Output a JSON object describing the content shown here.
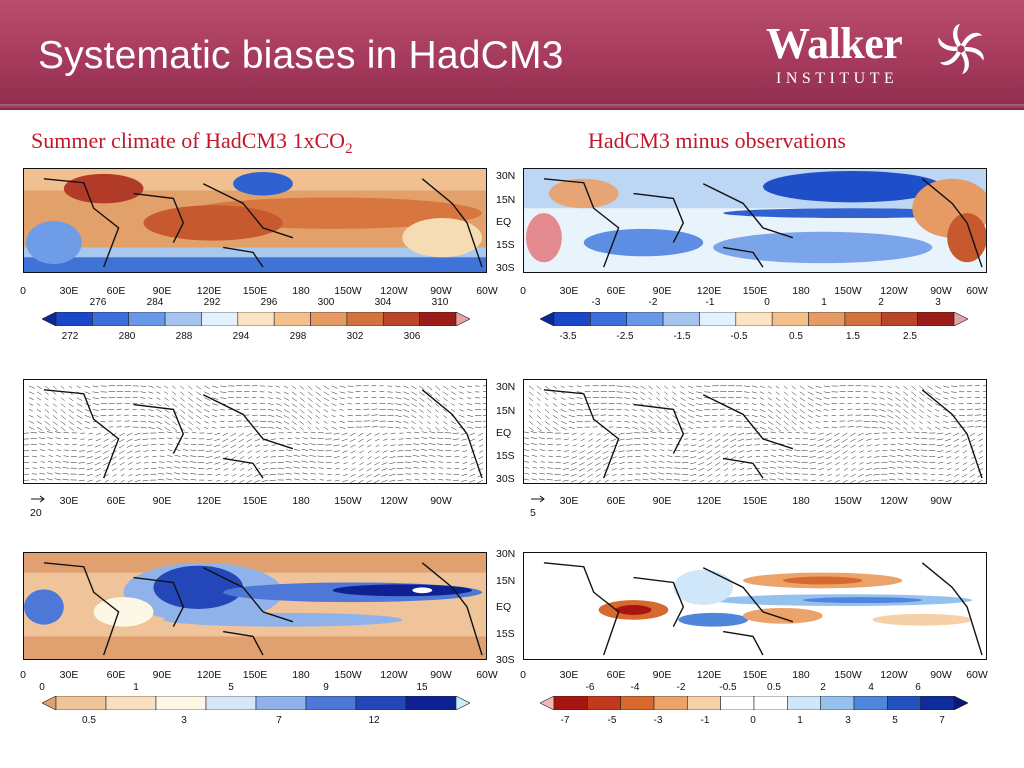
{
  "slide": {
    "title": "Systematic biases in HadCM3",
    "logo": {
      "word": "Walker",
      "sub": "INSTITUTE",
      "mark_icon": "pinwheel-logo-icon"
    }
  },
  "columns": {
    "left_title": "Summer climate of HadCM3 1xCO",
    "left_title_sub": "2",
    "right_title": "HadCM3 minus observations"
  },
  "axes": {
    "lat_ticks": [
      "30N",
      "15N",
      "EQ",
      "15S",
      "30S"
    ],
    "lon_ticks_full": [
      "0",
      "30E",
      "60E",
      "90E",
      "120E",
      "150E",
      "180",
      "150W",
      "120W",
      "90W",
      "60W"
    ],
    "lon_ticks_short": [
      "30E",
      "60E",
      "90E",
      "120E",
      "150E",
      "180",
      "150W",
      "120W",
      "90W"
    ]
  },
  "panels": {
    "temperature": {
      "cbar_top": [
        "276",
        "284",
        "292",
        "296",
        "300",
        "304",
        "310"
      ],
      "cbar_bottom": [
        "272",
        "280",
        "288",
        "294",
        "298",
        "302",
        "306"
      ],
      "cbar_colors": [
        "#0a2896",
        "#1a46c8",
        "#3c6fdc",
        "#6a98e8",
        "#a5c5f0",
        "#e2f1fb",
        "#fbe4c3",
        "#f3c08b",
        "#e59b63",
        "#d2733f",
        "#b9462a",
        "#9c1c17",
        "#e6a3a6"
      ]
    },
    "temperature_bias": {
      "cbar_top": [
        "-3",
        "-2",
        "-1",
        "0",
        "1",
        "2",
        "3"
      ],
      "cbar_bottom": [
        "-3.5",
        "-2.5",
        "-1.5",
        "-0.5",
        "0.5",
        "1.5",
        "2.5"
      ],
      "cbar_colors": [
        "#0a2896",
        "#1a46c8",
        "#3c6fdc",
        "#6a98e8",
        "#a5c5f0",
        "#e2f1fb",
        "#fbe4c3",
        "#f3c08b",
        "#e59b63",
        "#d2733f",
        "#b9462a",
        "#9c1c17",
        "#e6a3a6"
      ]
    },
    "wind": {
      "ref_vector": "20"
    },
    "wind_bias": {
      "ref_vector": "5"
    },
    "precip": {
      "cbar_top": [
        "0",
        "1",
        "5",
        "9",
        "15"
      ],
      "cbar_bottom": [
        "0.5",
        "3",
        "7",
        "12"
      ],
      "cbar_colors": [
        "#e0a070",
        "#f0c49a",
        "#f8dfc0",
        "#fdf8e6",
        "#d6e6f8",
        "#8fb2ea",
        "#4d78d8",
        "#2346b8",
        "#0d2192",
        "#c8ecfa"
      ]
    },
    "precip_bias": {
      "cbar_top": [
        "-6",
        "-4",
        "-2",
        "-0.5",
        "0.5",
        "2",
        "4",
        "6"
      ],
      "cbar_bottom": [
        "-7",
        "-5",
        "-3",
        "-1",
        "0",
        "1",
        "3",
        "5",
        "7"
      ],
      "cbar_colors": [
        "#f2b8b8",
        "#a8140f",
        "#c23a1c",
        "#d8692e",
        "#eba36a",
        "#f6d1a8",
        "#ffffff",
        "#ffffff",
        "#cfe7f8",
        "#94c1ee",
        "#4f86dc",
        "#2352c0",
        "#0f2c9c",
        "#08187a"
      ]
    }
  }
}
